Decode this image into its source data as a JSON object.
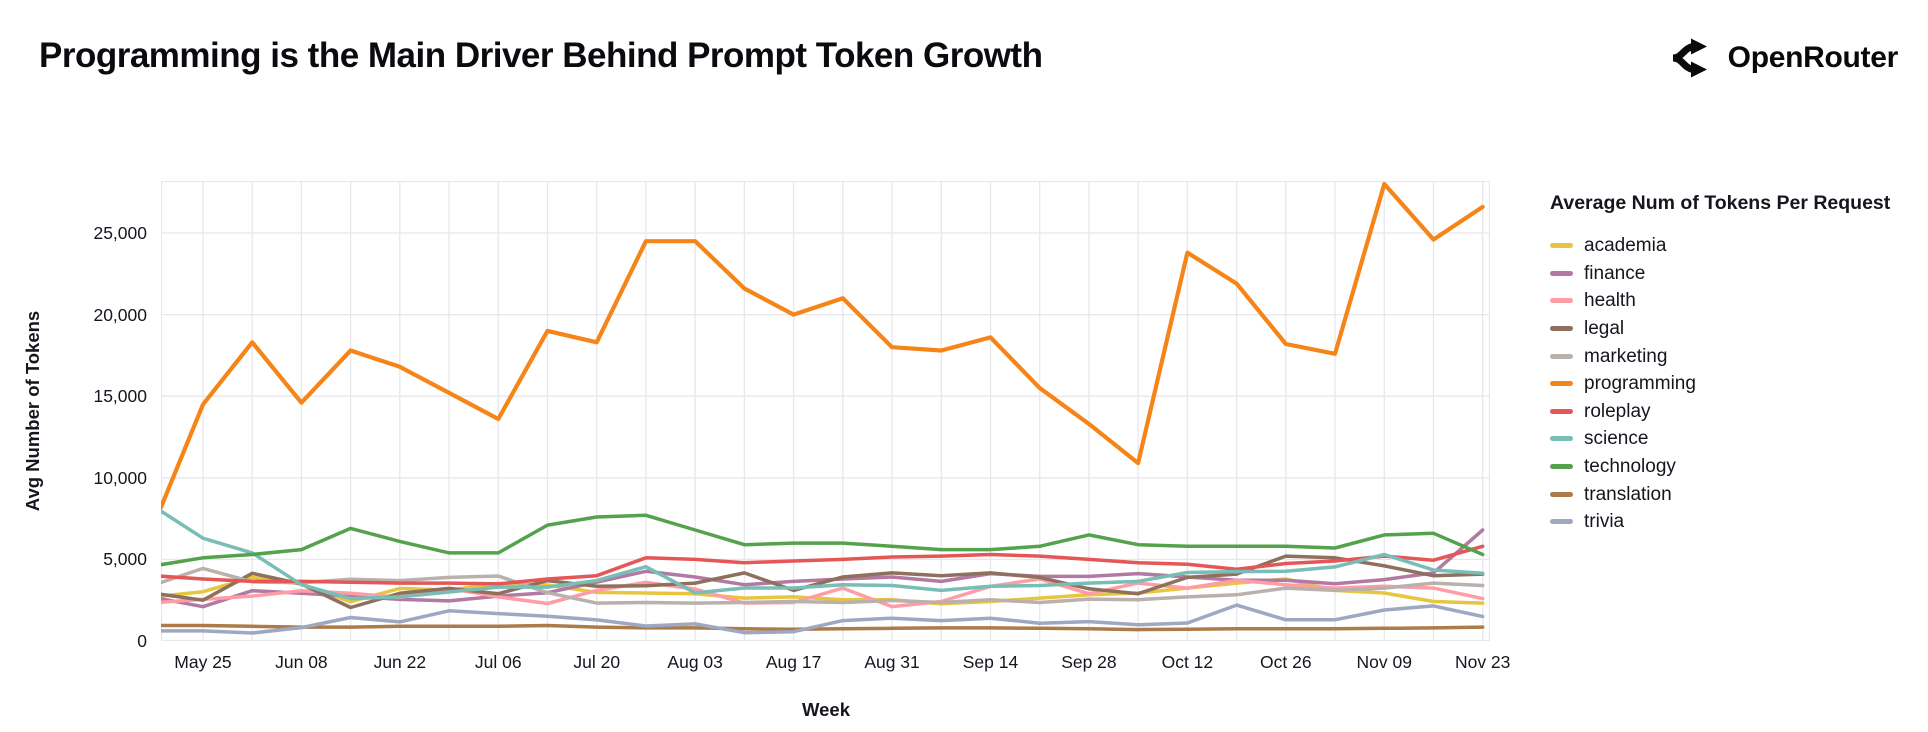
{
  "header": {
    "title": "Programming is the Main Driver Behind Prompt Token Growth",
    "brand": "OpenRouter",
    "brand_icon": "openrouter-logo-icon"
  },
  "chart_data": {
    "type": "line",
    "title": "Programming is the Main Driver Behind Prompt Token Growth",
    "xlabel": "Week",
    "ylabel": "Avg Number of Tokens",
    "legend_title": "Average Num of Tokens Per Request",
    "legend_position": "right",
    "grid": true,
    "grid_color": "#e7e7ee",
    "axis_text_color": "#15161e",
    "ylim": [
      0,
      28500
    ],
    "y_ticks": [
      0,
      5000,
      10000,
      15000,
      20000,
      25000
    ],
    "y_tick_labels": [
      "0",
      "5,000",
      "10,000",
      "15,000",
      "20,000",
      "25,000"
    ],
    "x_tick_labels": [
      "May 25",
      "Jun 08",
      "Jun 22",
      "Jul 06",
      "Jul 20",
      "Aug 03",
      "Aug 17",
      "Aug 31",
      "Sep 14",
      "Sep 28",
      "Oct 12",
      "Oct 26",
      "Nov 09",
      "Nov 23"
    ],
    "x": [
      "May 18",
      "May 25",
      "Jun 01",
      "Jun 08",
      "Jun 15",
      "Jun 22",
      "Jun 29",
      "Jul 06",
      "Jul 13",
      "Jul 20",
      "Jul 27",
      "Aug 03",
      "Aug 10",
      "Aug 17",
      "Aug 24",
      "Aug 31",
      "Sep 07",
      "Sep 14",
      "Sep 21",
      "Sep 28",
      "Oct 05",
      "Oct 12",
      "Oct 19",
      "Oct 26",
      "Nov 02",
      "Nov 09",
      "Nov 16",
      "Nov 23"
    ],
    "series": [
      {
        "name": "academia",
        "color": "#e7c63e",
        "values": [
          2710,
          3020,
          3900,
          3490,
          2400,
          3220,
          3120,
          3530,
          3430,
          2980,
          2940,
          2900,
          2630,
          2700,
          2530,
          2530,
          2280,
          2420,
          2630,
          2830,
          2940,
          3240,
          3550,
          3800,
          3100,
          2940,
          2420,
          2320
        ]
      },
      {
        "name": "finance",
        "color": "#b279a2",
        "values": [
          2670,
          2100,
          3080,
          2920,
          2750,
          2550,
          2460,
          2750,
          2960,
          3600,
          4270,
          3920,
          3450,
          3650,
          3800,
          3920,
          3650,
          4130,
          3960,
          3960,
          4130,
          3920,
          3720,
          3720,
          3510,
          3760,
          4170,
          6800
        ]
      },
      {
        "name": "health",
        "color": "#ff9da6",
        "values": [
          2340,
          2550,
          2750,
          3080,
          2920,
          2670,
          3220,
          2700,
          2300,
          3100,
          3590,
          3180,
          2320,
          2360,
          3240,
          2110,
          2420,
          3350,
          3800,
          2900,
          3550,
          3240,
          3720,
          3450,
          3240,
          3350,
          3240,
          2600
        ]
      },
      {
        "name": "legal",
        "color": "#8f705d",
        "values": [
          2920,
          2500,
          4150,
          3490,
          2050,
          2920,
          3220,
          2900,
          3700,
          3350,
          3390,
          3550,
          4170,
          3100,
          3920,
          4170,
          4000,
          4170,
          3900,
          3200,
          2900,
          3900,
          4100,
          5200,
          5100,
          4600,
          4000,
          4100
        ]
      },
      {
        "name": "marketing",
        "color": "#bab0ac",
        "values": [
          3430,
          4450,
          3630,
          3570,
          3780,
          3700,
          3900,
          3980,
          2960,
          2320,
          2360,
          2320,
          2360,
          2420,
          2360,
          2480,
          2360,
          2530,
          2360,
          2570,
          2530,
          2700,
          2830,
          3240,
          3100,
          3240,
          3550,
          3400
        ]
      },
      {
        "name": "programming",
        "color": "#f58518",
        "values": [
          7100,
          14500,
          18300,
          14600,
          17800,
          16800,
          15200,
          13600,
          19000,
          18300,
          24500,
          24500,
          21600,
          20000,
          21000,
          18000,
          17800,
          18600,
          15500,
          13300,
          10900,
          23800,
          21900,
          18200,
          17600,
          28000,
          24600,
          26600
        ]
      },
      {
        "name": "roleplay",
        "color": "#e45756",
        "values": [
          4000,
          3800,
          3650,
          3650,
          3600,
          3550,
          3550,
          3500,
          3800,
          4000,
          5100,
          5000,
          4800,
          4900,
          5000,
          5150,
          5200,
          5300,
          5200,
          5000,
          4800,
          4700,
          4400,
          4750,
          4900,
          5200,
          4950,
          5800
        ]
      },
      {
        "name": "science",
        "color": "#78bdb6",
        "values": [
          8250,
          6300,
          5400,
          3450,
          2600,
          2700,
          3000,
          3300,
          3300,
          3700,
          4550,
          2950,
          3250,
          3250,
          3450,
          3400,
          3100,
          3350,
          3400,
          3550,
          3650,
          4200,
          4250,
          4270,
          4540,
          5300,
          4350,
          4150
        ]
      },
      {
        "name": "technology",
        "color": "#54a24b",
        "values": [
          4600,
          5100,
          5300,
          5600,
          6900,
          6100,
          5400,
          5400,
          7100,
          7600,
          7700,
          6800,
          5900,
          6000,
          6000,
          5800,
          5600,
          5600,
          5800,
          6500,
          5900,
          5800,
          5800,
          5800,
          5700,
          6500,
          6600,
          5300
        ]
      },
      {
        "name": "translation",
        "color": "#ad7b4a",
        "values": [
          950,
          950,
          900,
          850,
          850,
          900,
          900,
          900,
          950,
          850,
          800,
          800,
          750,
          720,
          750,
          780,
          800,
          800,
          780,
          750,
          700,
          720,
          750,
          750,
          750,
          780,
          800,
          850
        ]
      },
      {
        "name": "trivia",
        "color": "#9ea8c2",
        "values": [
          620,
          620,
          490,
          820,
          1440,
          1170,
          1850,
          1680,
          1520,
          1290,
          920,
          1050,
          510,
          570,
          1250,
          1400,
          1250,
          1400,
          1090,
          1190,
          990,
          1100,
          2200,
          1300,
          1300,
          1900,
          2150,
          1500
        ]
      }
    ]
  }
}
